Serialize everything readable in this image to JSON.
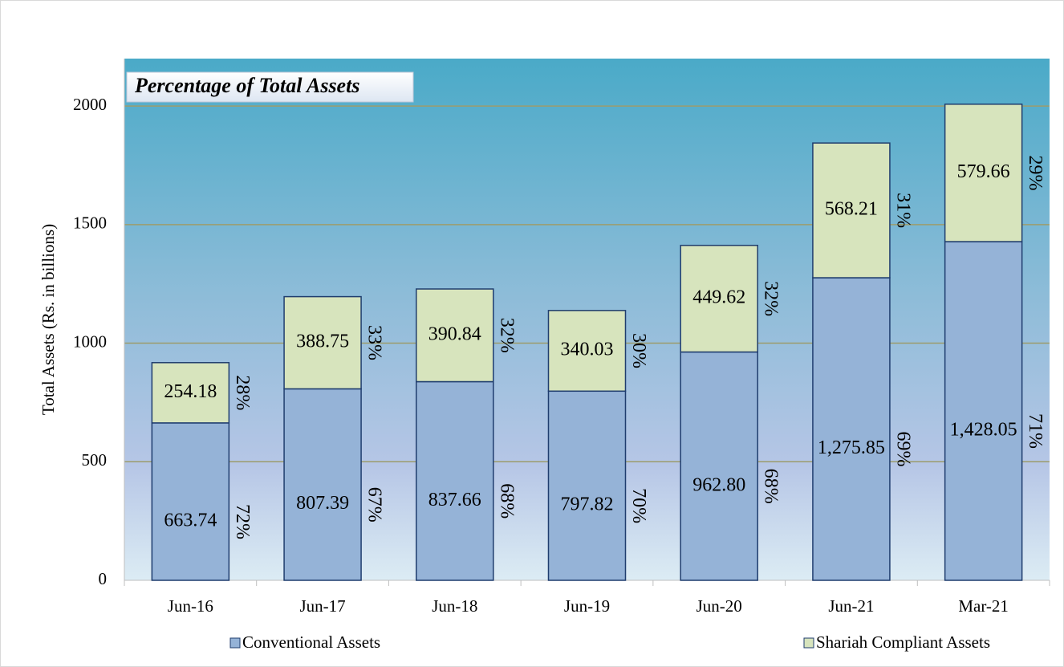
{
  "chart_data": {
    "type": "stacked_bar",
    "title": "Percentage of Total Assets",
    "y_label": "Total Assets  (Rs. in billions)",
    "categories": [
      "Jun-16",
      "Jun-17",
      "Jun-18",
      "Jun-19",
      "Jun-20",
      "Jun-21",
      "Mar-21"
    ],
    "series": [
      {
        "name": "Conventional Assets",
        "color": "#95b3d7",
        "values": [
          663.74,
          807.39,
          837.66,
          797.82,
          962.8,
          1275.85,
          1428.05
        ],
        "value_labels": [
          "663.74",
          "807.39",
          "837.66",
          "797.82",
          "962.80",
          "1,275.85",
          "1,428.05"
        ],
        "percent_labels": [
          "72%",
          "67%",
          "68%",
          "70%",
          "68%",
          "69%",
          "71%"
        ]
      },
      {
        "name": "Shariah Compliant Assets",
        "color": "#d7e4bd",
        "values": [
          254.18,
          388.75,
          390.84,
          340.03,
          449.62,
          568.21,
          579.66
        ],
        "value_labels": [
          "254.18",
          "388.75",
          "390.84",
          "340.03",
          "449.62",
          "568.21",
          "579.66"
        ],
        "percent_labels": [
          "28%",
          "33%",
          "32%",
          "30%",
          "32%",
          "31%",
          "29%"
        ]
      }
    ],
    "ylim": [
      0,
      2200
    ],
    "yticks": [
      0,
      500,
      1000,
      1500,
      2000
    ],
    "grid": true,
    "legend": "bottom"
  }
}
